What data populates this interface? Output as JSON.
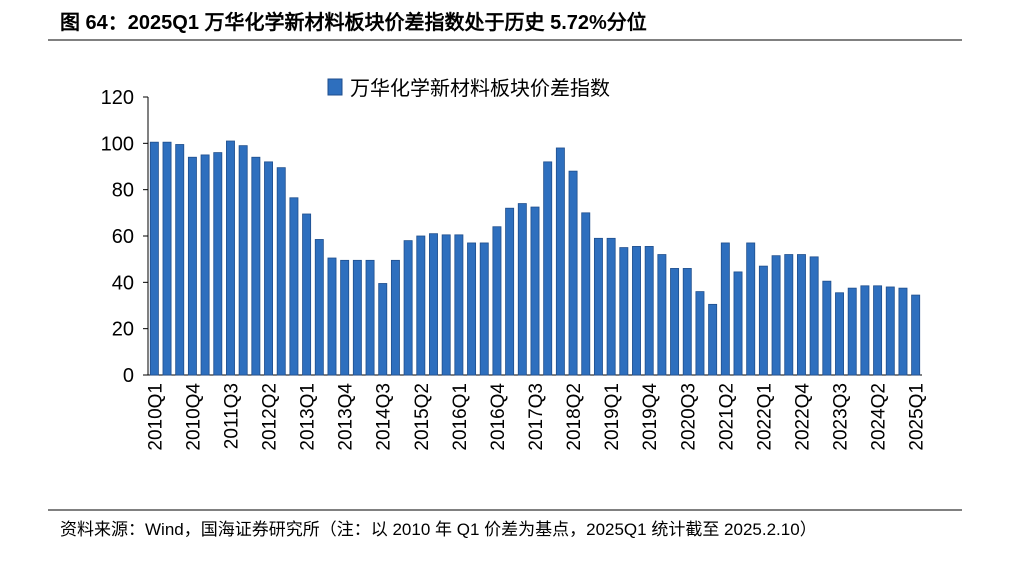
{
  "chart_data": {
    "type": "bar",
    "title": "图 64：2025Q1 万华化学新材料板块价差指数处于历史 5.72%分位",
    "source": "资料来源：Wind，国海证券研究所（注：以 2010 年 Q1 价差为基点，2025Q1 统计截至 2025.2.10）",
    "categories": [
      "2010Q1",
      null,
      null,
      "2010Q4",
      null,
      null,
      "2011Q3",
      null,
      null,
      "2012Q2",
      null,
      null,
      "2013Q1",
      null,
      null,
      "2013Q4",
      null,
      null,
      "2014Q3",
      null,
      null,
      "2015Q2",
      null,
      null,
      "2016Q1",
      null,
      null,
      "2016Q4",
      null,
      null,
      "2017Q3",
      null,
      null,
      "2018Q2",
      null,
      null,
      "2019Q1",
      null,
      null,
      "2019Q4",
      null,
      null,
      "2020Q3",
      null,
      null,
      "2021Q2",
      null,
      null,
      "2022Q1",
      null,
      null,
      "2022Q4",
      null,
      null,
      "2023Q3",
      null,
      null,
      "2024Q2",
      null,
      null,
      "2025Q1"
    ],
    "series": [
      {
        "name": "万华化学新材料板块价差指数",
        "color": "#2e6fbe",
        "values": [
          100.5,
          100.5,
          99.5,
          94,
          95,
          96,
          101,
          99,
          94,
          92,
          89.5,
          76.5,
          69.5,
          58.5,
          50.5,
          49.5,
          49.5,
          49.5,
          39.5,
          49.5,
          58,
          60,
          61,
          60.5,
          60.5,
          57,
          57,
          64,
          72,
          74,
          72.5,
          92,
          98,
          88,
          70,
          59,
          59,
          55,
          55.5,
          55.5,
          52,
          46,
          46,
          36,
          30.5,
          57,
          44.5,
          57,
          47,
          51.5,
          52,
          52,
          51,
          40.5,
          35.5,
          37.5,
          38.5,
          38.5,
          38,
          37.5,
          34.5
        ]
      }
    ],
    "ylim": [
      0,
      120
    ],
    "yticks": [
      0,
      20,
      40,
      60,
      80,
      100,
      120
    ],
    "legend": "top"
  }
}
